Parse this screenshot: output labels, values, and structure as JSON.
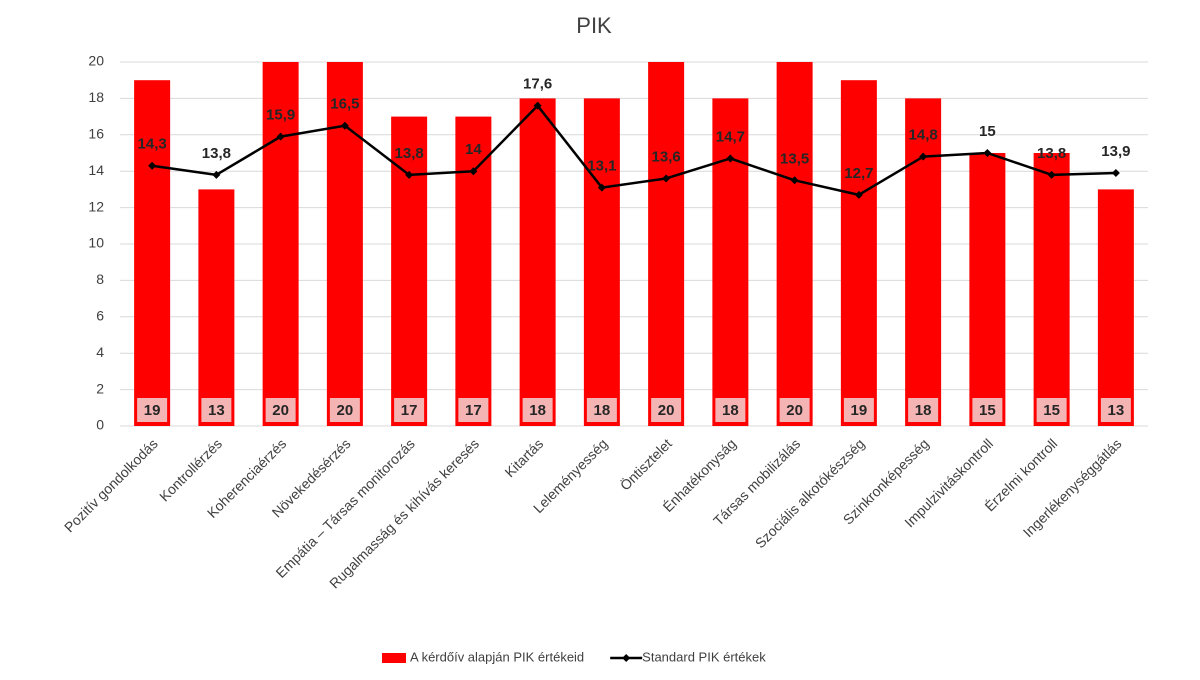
{
  "chart_data": {
    "type": "combo",
    "title": "PIK",
    "categories": [
      "Pozitív gondolkodás",
      "Kontrollérzés",
      "Koherenciaérzés",
      "Növekedésérzés",
      "Empátia – Társas monitorozás",
      "Rugalmasság és kihívás keresés",
      "Kitartás",
      "Leleményesség",
      "Öntisztelet",
      "Énhatékonyság",
      "Társas mobilizálás",
      "Szociális alkotókészség",
      "Szinkronképesség",
      "Impulzivitáskontroll",
      "Érzelmi kontroll",
      "Ingerlékenységgátlás"
    ],
    "series": [
      {
        "name": "A kérdőív alapján PIK értékeid",
        "type": "bar",
        "color": "#ff0000",
        "values": [
          19,
          13,
          20,
          20,
          17,
          17,
          18,
          18,
          20,
          18,
          20,
          19,
          18,
          15,
          15,
          13
        ]
      },
      {
        "name": "Standard PIK értékek",
        "type": "line",
        "color": "#000000",
        "values": [
          14.3,
          13.8,
          15.9,
          16.5,
          13.8,
          14,
          17.6,
          13.1,
          13.6,
          14.7,
          13.5,
          12.7,
          14.8,
          15,
          13.8,
          13.9
        ],
        "value_labels": [
          "14,3",
          "13,8",
          "15,9",
          "16,5",
          "13,8",
          "14",
          "17,6",
          "13,1",
          "13,6",
          "14,7",
          "13,5",
          "12,7",
          "14,8",
          "15",
          "13,8",
          "13,9"
        ]
      }
    ],
    "ylim": [
      0,
      20
    ],
    "yticks": [
      0,
      2,
      4,
      6,
      8,
      10,
      12,
      14,
      16,
      18,
      20
    ],
    "grid": true,
    "legend": "bottom"
  }
}
